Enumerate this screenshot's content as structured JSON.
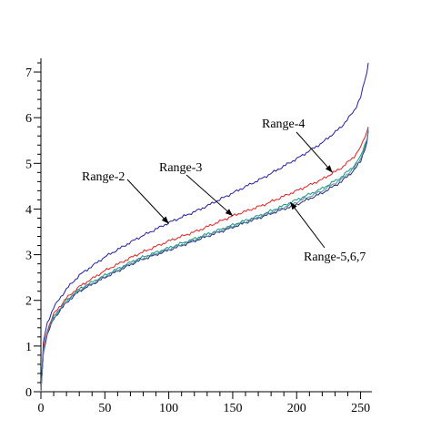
{
  "chart_data": {
    "type": "line",
    "title": "",
    "xlabel": "",
    "ylabel": "",
    "xlim": [
      0,
      256
    ],
    "ylim": [
      0,
      7.3
    ],
    "grid": false,
    "x_ticks": [
      {
        "value": 0,
        "label": "0"
      },
      {
        "value": 50,
        "label": "50"
      },
      {
        "value": 100,
        "label": "100"
      },
      {
        "value": 150,
        "label": "150"
      },
      {
        "value": 200,
        "label": "200"
      },
      {
        "value": 250,
        "label": "250"
      }
    ],
    "y_ticks": [
      {
        "value": 0,
        "label": "0"
      },
      {
        "value": 1,
        "label": "1"
      },
      {
        "value": 2,
        "label": "2"
      },
      {
        "value": 3,
        "label": "3"
      },
      {
        "value": 4,
        "label": "4"
      },
      {
        "value": 5,
        "label": "5"
      },
      {
        "value": 6,
        "label": "6"
      },
      {
        "value": 7,
        "label": "7"
      }
    ],
    "series": [
      {
        "color": "#2020a0",
        "x": [
          0,
          2,
          5,
          10,
          20,
          30,
          50,
          75,
          100,
          125,
          150,
          175,
          200,
          220,
          235,
          245,
          250,
          255,
          256
        ],
        "y": [
          0,
          1.1,
          1.5,
          1.85,
          2.25,
          2.55,
          2.95,
          3.35,
          3.7,
          4.0,
          4.35,
          4.7,
          5.1,
          5.45,
          5.8,
          6.15,
          6.45,
          7.0,
          7.2
        ]
      },
      {
        "color": "#e02020",
        "x": [
          0,
          2,
          5,
          10,
          20,
          30,
          50,
          75,
          100,
          125,
          150,
          175,
          200,
          220,
          235,
          245,
          250,
          255,
          256
        ],
        "y": [
          0,
          0.95,
          1.35,
          1.7,
          2.05,
          2.3,
          2.65,
          3.0,
          3.3,
          3.55,
          3.85,
          4.1,
          4.4,
          4.65,
          4.9,
          5.15,
          5.35,
          5.7,
          5.8
        ]
      },
      {
        "color": "#10a070",
        "x": [
          0,
          2,
          5,
          10,
          20,
          30,
          50,
          75,
          100,
          125,
          150,
          175,
          200,
          220,
          235,
          245,
          250,
          255,
          256
        ],
        "y": [
          0,
          0.9,
          1.3,
          1.65,
          2.0,
          2.25,
          2.55,
          2.9,
          3.15,
          3.4,
          3.65,
          3.9,
          4.2,
          4.45,
          4.7,
          4.95,
          5.15,
          5.55,
          5.75
        ]
      },
      {
        "color": "#203060",
        "x": [
          0,
          2,
          5,
          10,
          20,
          30,
          50,
          75,
          100,
          125,
          150,
          175,
          200,
          220,
          235,
          245,
          250,
          255,
          256
        ],
        "y": [
          0,
          0.85,
          1.25,
          1.6,
          1.95,
          2.2,
          2.5,
          2.85,
          3.1,
          3.35,
          3.6,
          3.85,
          4.1,
          4.35,
          4.6,
          4.85,
          5.05,
          5.45,
          5.7
        ]
      },
      {
        "color": "#6080c0",
        "x": [
          0,
          2,
          5,
          10,
          20,
          30,
          50,
          75,
          100,
          125,
          150,
          175,
          200,
          220,
          235,
          245,
          250,
          255,
          256
        ],
        "y": [
          0,
          0.88,
          1.28,
          1.62,
          1.98,
          2.22,
          2.52,
          2.87,
          3.12,
          3.37,
          3.62,
          3.87,
          4.15,
          4.4,
          4.65,
          4.9,
          5.1,
          5.5,
          5.72
        ]
      }
    ],
    "annotations": [
      {
        "text": "Range-2",
        "target": {
          "x": 100,
          "y": 3.68
        }
      },
      {
        "text": "Range-3",
        "target": {
          "x": 150,
          "y": 3.85
        }
      },
      {
        "text": "Range-4",
        "target": {
          "x": 228,
          "y": 4.8
        }
      },
      {
        "text": "Range-5,6,7",
        "target": {
          "x": 195,
          "y": 4.15
        }
      }
    ]
  }
}
